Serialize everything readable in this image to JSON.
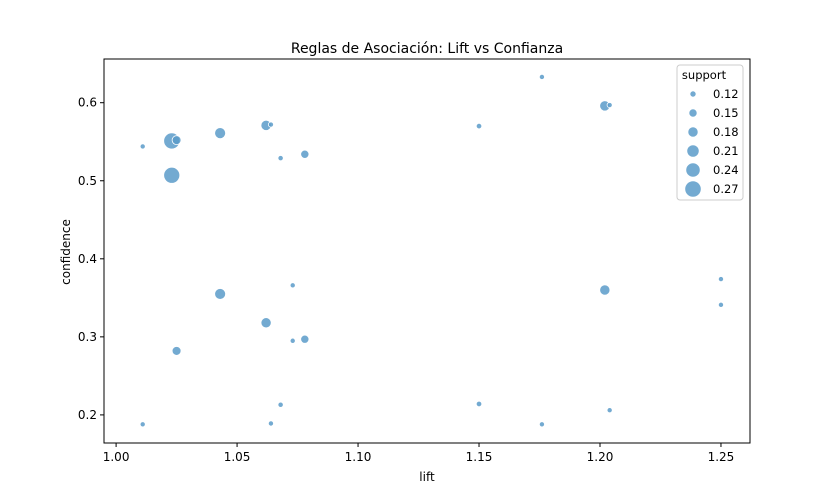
{
  "chart_data": {
    "type": "scatter",
    "title": "Reglas de Asociación: Lift vs Confianza",
    "xlabel": "lift",
    "ylabel": "confidence",
    "xlim": [
      0.995,
      1.262
    ],
    "ylim": [
      0.164,
      0.656
    ],
    "xticks": [
      1.0,
      1.05,
      1.1,
      1.15,
      1.2,
      1.25
    ],
    "xtick_labels": [
      "1.00",
      "1.05",
      "1.10",
      "1.15",
      "1.20",
      "1.25"
    ],
    "yticks": [
      0.2,
      0.3,
      0.4,
      0.5,
      0.6
    ],
    "ytick_labels": [
      "0.2",
      "0.3",
      "0.4",
      "0.5",
      "0.6"
    ],
    "grid": false,
    "color": "#5b9bc9",
    "legend": {
      "title": "support",
      "placement": "top-right",
      "entries": [
        {
          "label": "0.12",
          "size": 0.12
        },
        {
          "label": "0.15",
          "size": 0.15
        },
        {
          "label": "0.18",
          "size": 0.18
        },
        {
          "label": "0.21",
          "size": 0.21
        },
        {
          "label": "0.24",
          "size": 0.24
        },
        {
          "label": "0.27",
          "size": 0.27
        }
      ]
    },
    "points": [
      {
        "x": 1.011,
        "y": 0.544,
        "support": 0.105
      },
      {
        "x": 1.011,
        "y": 0.188,
        "support": 0.105
      },
      {
        "x": 1.023,
        "y": 0.551,
        "support": 0.265
      },
      {
        "x": 1.023,
        "y": 0.507,
        "support": 0.265
      },
      {
        "x": 1.025,
        "y": 0.552,
        "support": 0.16
      },
      {
        "x": 1.025,
        "y": 0.282,
        "support": 0.16
      },
      {
        "x": 1.043,
        "y": 0.561,
        "support": 0.19
      },
      {
        "x": 1.043,
        "y": 0.355,
        "support": 0.19
      },
      {
        "x": 1.062,
        "y": 0.571,
        "support": 0.18
      },
      {
        "x": 1.062,
        "y": 0.318,
        "support": 0.18
      },
      {
        "x": 1.064,
        "y": 0.572,
        "support": 0.105
      },
      {
        "x": 1.064,
        "y": 0.189,
        "support": 0.105
      },
      {
        "x": 1.068,
        "y": 0.529,
        "support": 0.107
      },
      {
        "x": 1.068,
        "y": 0.213,
        "support": 0.107
      },
      {
        "x": 1.073,
        "y": 0.366,
        "support": 0.105
      },
      {
        "x": 1.073,
        "y": 0.295,
        "support": 0.105
      },
      {
        "x": 1.078,
        "y": 0.534,
        "support": 0.15
      },
      {
        "x": 1.078,
        "y": 0.297,
        "support": 0.15
      },
      {
        "x": 1.15,
        "y": 0.57,
        "support": 0.11
      },
      {
        "x": 1.15,
        "y": 0.214,
        "support": 0.11
      },
      {
        "x": 1.176,
        "y": 0.633,
        "support": 0.105
      },
      {
        "x": 1.176,
        "y": 0.188,
        "support": 0.105
      },
      {
        "x": 1.202,
        "y": 0.596,
        "support": 0.18
      },
      {
        "x": 1.202,
        "y": 0.36,
        "support": 0.18
      },
      {
        "x": 1.204,
        "y": 0.597,
        "support": 0.105
      },
      {
        "x": 1.204,
        "y": 0.206,
        "support": 0.105
      },
      {
        "x": 1.25,
        "y": 0.374,
        "support": 0.105
      },
      {
        "x": 1.25,
        "y": 0.341,
        "support": 0.105
      }
    ]
  }
}
